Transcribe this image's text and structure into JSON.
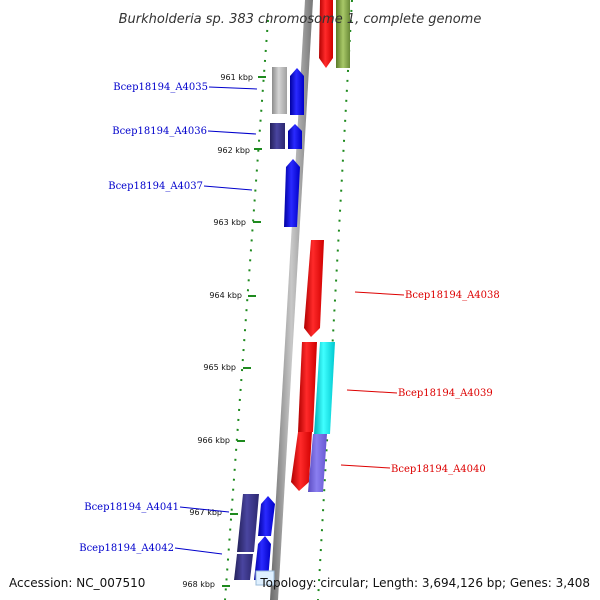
{
  "title": "Burkholderia sp. 383 chromosome 1, complete genome",
  "accession": "Accession: NC_007510",
  "topology": "Topology: circular; Length: 3,694,126 bp; Genes: 3,408",
  "colors": {
    "forward": "#0000ff",
    "reverse": "#ff0000",
    "cyan": "#00e5ee",
    "navy": "#3a3580",
    "violet": "#7466d6",
    "gray": "#a8a8a8",
    "olive": "#7a9a40",
    "tick": "#1e8a1e",
    "backbone": "#8a8a8a"
  },
  "ticks": [
    "961 kbp",
    "962 kbp",
    "963 kbp",
    "964 kbp",
    "965 kbp",
    "966 kbp",
    "967 kbp",
    "968 kbp"
  ],
  "genes": {
    "a4035": "Bcep18194_A4035",
    "a4036": "Bcep18194_A4036",
    "a4037": "Bcep18194_A4037",
    "a4038": "Bcep18194_A4038",
    "a4039": "Bcep18194_A4039",
    "a4040": "Bcep18194_A4040",
    "a4041": "Bcep18194_A4041",
    "a4042": "Bcep18194_A4042"
  }
}
